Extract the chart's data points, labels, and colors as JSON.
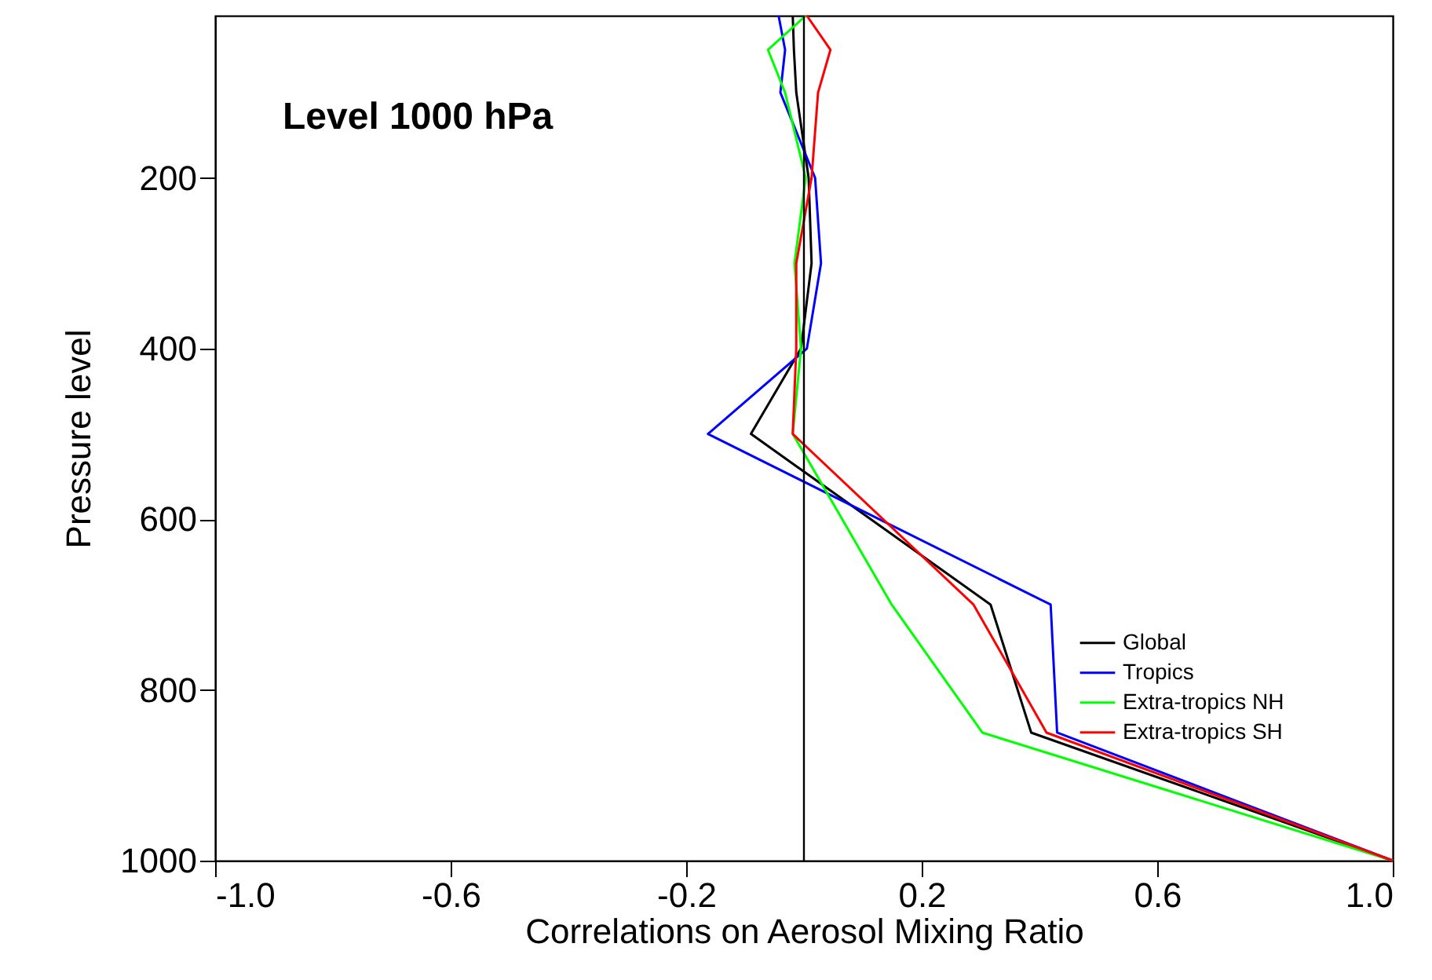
{
  "chart_data": {
    "type": "line",
    "title": "Level 1000 hPa",
    "xlabel": "Correlations on Aerosol Mixing Ratio",
    "ylabel": "Pressure level",
    "x": [
      10,
      50,
      100,
      200,
      300,
      400,
      500,
      700,
      850,
      1000
    ],
    "series": [
      {
        "name": "Global",
        "color": "#000000",
        "values": [
          -0.019,
          -0.017,
          -0.013,
          0.008,
          0.013,
          -0.005,
          -0.09,
          0.317,
          0.386,
          1.0
        ]
      },
      {
        "name": "Tropics",
        "color": "#0000ff",
        "values": [
          -0.043,
          -0.032,
          -0.04,
          0.019,
          0.029,
          0.005,
          -0.163,
          0.419,
          0.43,
          1.0
        ]
      },
      {
        "name": "Extra-tropics NH",
        "color": "#00ff00",
        "values": [
          0.003,
          -0.061,
          -0.032,
          0.003,
          -0.016,
          -0.005,
          -0.019,
          0.149,
          0.303,
          1.0
        ]
      },
      {
        "name": "Extra-tropics SH",
        "color": "#ff0000",
        "values": [
          0.005,
          0.045,
          0.024,
          0.013,
          -0.013,
          -0.013,
          -0.019,
          0.288,
          0.412,
          1.0
        ]
      }
    ],
    "orientation": "horizontal",
    "xlim": [
      -1.0,
      1.0
    ],
    "xticks": [
      {
        "value": -1.0,
        "label": "-1.0"
      },
      -0.6,
      -0.2,
      0.2,
      0.6,
      {
        "value": 1.0,
        "label": "1.0"
      }
    ],
    "ylim": [
      1000,
      10
    ],
    "yticks": [
      200,
      400,
      600,
      800,
      1000
    ],
    "ref_lines": [
      {
        "axis": "x",
        "value": 0,
        "color": "#000000"
      }
    ],
    "legend": "right",
    "grid": false,
    "marker": "none",
    "line_style": "solid"
  }
}
